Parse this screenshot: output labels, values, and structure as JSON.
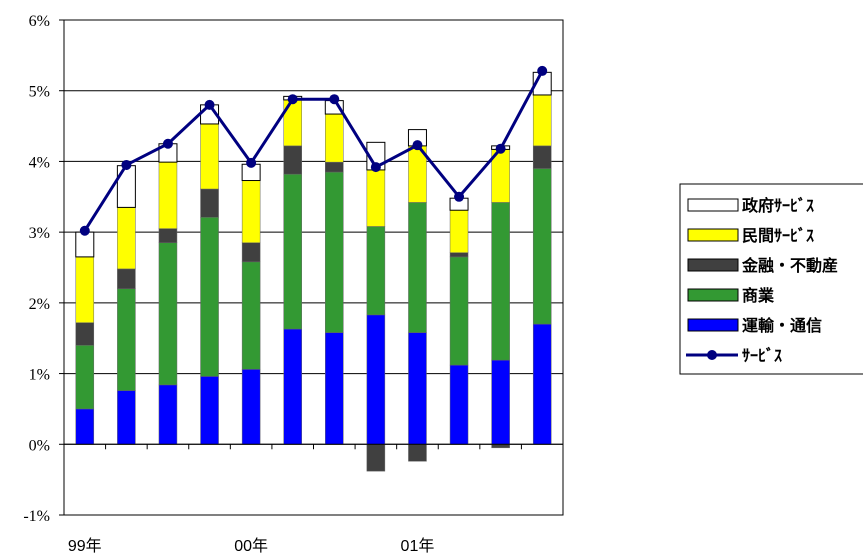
{
  "chart_data": {
    "type": "bar",
    "stacked": true,
    "title": "",
    "xlabel": "",
    "ylabel": "",
    "ylim": [
      -1,
      6
    ],
    "y_ticks": [
      "6%",
      "5%",
      "4%",
      "3%",
      "2%",
      "1%",
      "0%",
      "-1%"
    ],
    "x_tick_labels": [
      {
        "label": "99年",
        "index": 0
      },
      {
        "label": "00年",
        "index": 4
      },
      {
        "label": "01年",
        "index": 8
      }
    ],
    "categories": [
      "99Q1",
      "99Q2",
      "99Q3",
      "99Q4",
      "00Q1",
      "00Q2",
      "00Q3",
      "00Q4",
      "01Q1",
      "01Q2",
      "01Q3",
      "01Q4"
    ],
    "series": [
      {
        "name": "運輸・通信",
        "color": "#0000FF",
        "values": [
          0.5,
          0.76,
          0.84,
          0.96,
          1.06,
          1.63,
          1.58,
          1.83,
          1.58,
          1.12,
          1.19,
          1.7
        ]
      },
      {
        "name": "商業",
        "color": "#339933",
        "values": [
          0.9,
          1.44,
          2.01,
          2.25,
          1.52,
          2.19,
          2.27,
          1.25,
          1.84,
          1.53,
          2.23,
          2.2
        ]
      },
      {
        "name": "金融・不動産",
        "color": "#404040",
        "values": [
          0.32,
          0.28,
          0.2,
          0.4,
          0.27,
          0.4,
          0.14,
          -0.38,
          -0.24,
          0.06,
          -0.05,
          0.32
        ]
      },
      {
        "name": "民間サービス",
        "color": "#FFFF00",
        "values": [
          0.93,
          0.87,
          0.94,
          0.92,
          0.88,
          0.65,
          0.68,
          0.8,
          0.8,
          0.6,
          0.75,
          0.72
        ]
      },
      {
        "name": "政府サービス",
        "color": "#FFFFFF",
        "values": [
          0.35,
          0.59,
          0.26,
          0.27,
          0.23,
          0.05,
          0.19,
          0.39,
          0.23,
          0.17,
          0.05,
          0.32
        ]
      }
    ],
    "line": {
      "name": "サービス",
      "color": "#000080",
      "values": [
        3.02,
        3.95,
        4.25,
        4.8,
        3.98,
        4.88,
        4.88,
        3.92,
        4.23,
        3.5,
        4.18,
        5.28
      ]
    },
    "legend": {
      "position": "right",
      "entries": [
        {
          "label": "政府ｻｰﾋﾞｽ",
          "kind": "box",
          "color": "#FFFFFF"
        },
        {
          "label": "民間ｻｰﾋﾞｽ",
          "kind": "box",
          "color": "#FFFF00"
        },
        {
          "label": "金融・不動産",
          "kind": "box",
          "color": "#404040"
        },
        {
          "label": "商業",
          "kind": "box",
          "color": "#339933"
        },
        {
          "label": "運輸・通信",
          "kind": "box",
          "color": "#0000FF"
        },
        {
          "label": "ｻｰﾋﾞｽ",
          "kind": "line",
          "color": "#000080"
        }
      ]
    },
    "grid": "horizontal"
  }
}
